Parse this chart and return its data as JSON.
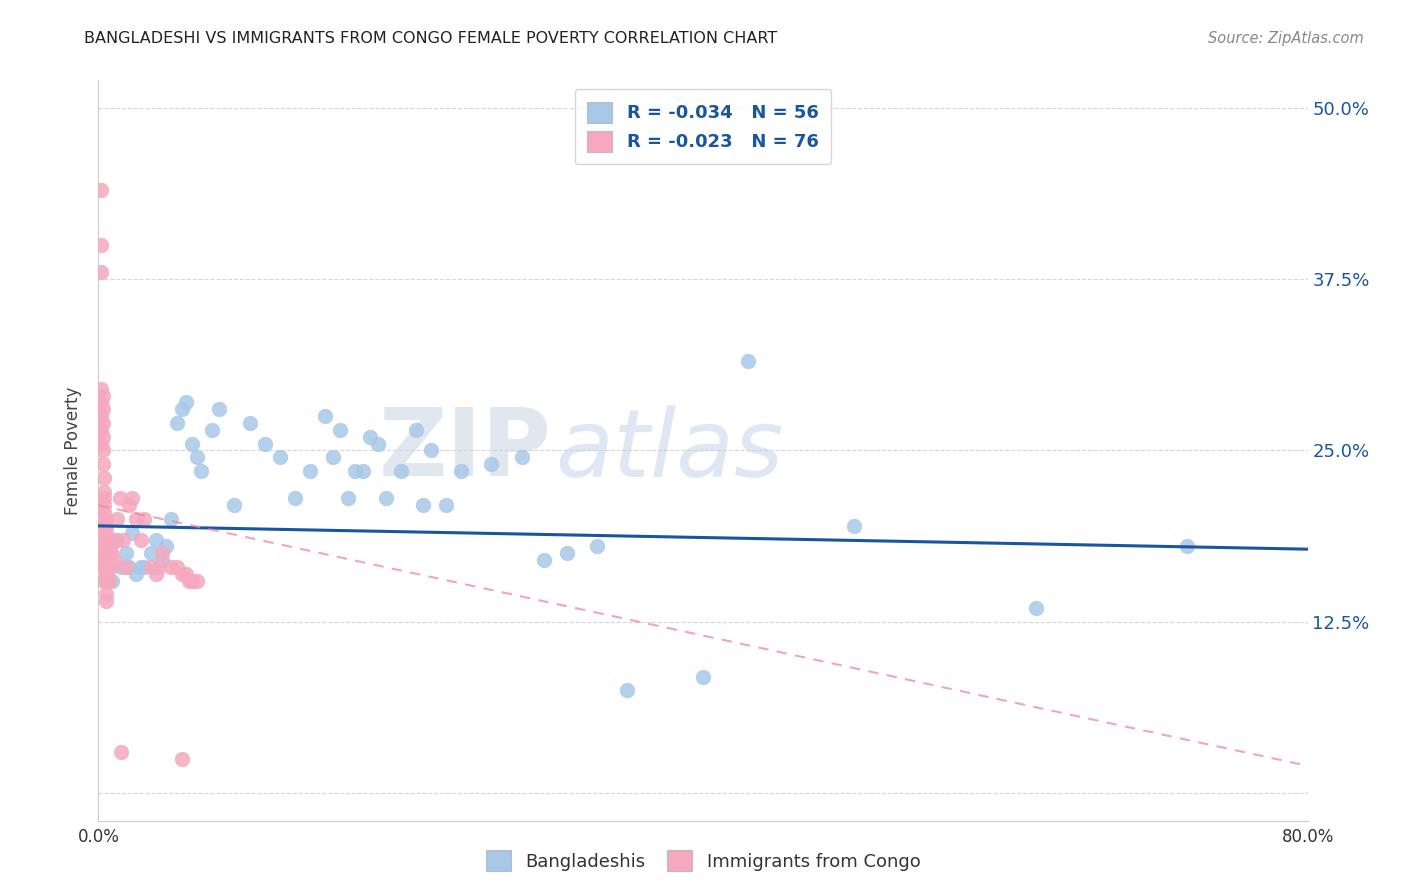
{
  "title": "BANGLADESHI VS IMMIGRANTS FROM CONGO FEMALE POVERTY CORRELATION CHART",
  "source": "Source: ZipAtlas.com",
  "ylabel": "Female Poverty",
  "blue_R": -0.034,
  "blue_N": 56,
  "pink_R": -0.023,
  "pink_N": 76,
  "blue_color": "#a8c8e8",
  "blue_line_color": "#1a56a0",
  "pink_color": "#f5a8be",
  "pink_line_color": "#e888a8",
  "legend_label_blue": "Bangladeshis",
  "legend_label_pink": "Immigrants from Congo",
  "xlim": [
    0.0,
    0.8
  ],
  "ylim": [
    -0.02,
    0.52
  ],
  "ytick_vals": [
    0.0,
    0.125,
    0.25,
    0.375,
    0.5
  ],
  "ytick_labels_right": [
    "",
    "12.5%",
    "25.0%",
    "37.5%",
    "50.0%"
  ],
  "blue_x": [
    0.005,
    0.007,
    0.009,
    0.012,
    0.015,
    0.018,
    0.02,
    0.022,
    0.025,
    0.028,
    0.03,
    0.035,
    0.038,
    0.042,
    0.045,
    0.048,
    0.052,
    0.055,
    0.058,
    0.062,
    0.065,
    0.068,
    0.075,
    0.08,
    0.09,
    0.1,
    0.11,
    0.12,
    0.13,
    0.14,
    0.15,
    0.155,
    0.16,
    0.165,
    0.17,
    0.175,
    0.18,
    0.185,
    0.19,
    0.2,
    0.21,
    0.215,
    0.22,
    0.23,
    0.24,
    0.26,
    0.28,
    0.295,
    0.31,
    0.33,
    0.35,
    0.4,
    0.43,
    0.5,
    0.62,
    0.72
  ],
  "blue_y": [
    0.175,
    0.18,
    0.155,
    0.185,
    0.165,
    0.175,
    0.165,
    0.19,
    0.16,
    0.165,
    0.165,
    0.175,
    0.185,
    0.17,
    0.18,
    0.2,
    0.27,
    0.28,
    0.285,
    0.255,
    0.245,
    0.235,
    0.265,
    0.28,
    0.21,
    0.27,
    0.255,
    0.245,
    0.215,
    0.235,
    0.275,
    0.245,
    0.265,
    0.215,
    0.235,
    0.235,
    0.26,
    0.255,
    0.215,
    0.235,
    0.265,
    0.21,
    0.25,
    0.21,
    0.235,
    0.24,
    0.245,
    0.17,
    0.175,
    0.18,
    0.075,
    0.085,
    0.315,
    0.195,
    0.135,
    0.18
  ],
  "pink_x": [
    0.002,
    0.002,
    0.002,
    0.002,
    0.002,
    0.002,
    0.002,
    0.002,
    0.002,
    0.002,
    0.003,
    0.003,
    0.003,
    0.003,
    0.003,
    0.003,
    0.003,
    0.003,
    0.003,
    0.003,
    0.004,
    0.004,
    0.004,
    0.004,
    0.004,
    0.004,
    0.004,
    0.004,
    0.005,
    0.005,
    0.005,
    0.005,
    0.005,
    0.005,
    0.005,
    0.005,
    0.005,
    0.005,
    0.005,
    0.005,
    0.006,
    0.006,
    0.006,
    0.006,
    0.006,
    0.007,
    0.007,
    0.007,
    0.007,
    0.008,
    0.008,
    0.008,
    0.01,
    0.01,
    0.012,
    0.014,
    0.016,
    0.018,
    0.02,
    0.022,
    0.025,
    0.028,
    0.03,
    0.035,
    0.038,
    0.04,
    0.042,
    0.048,
    0.052,
    0.055,
    0.058,
    0.06,
    0.062,
    0.065,
    0.055,
    0.015
  ],
  "pink_y": [
    0.44,
    0.4,
    0.38,
    0.295,
    0.285,
    0.275,
    0.265,
    0.255,
    0.2,
    0.17,
    0.29,
    0.28,
    0.27,
    0.26,
    0.25,
    0.24,
    0.195,
    0.185,
    0.175,
    0.165,
    0.23,
    0.22,
    0.215,
    0.21,
    0.205,
    0.175,
    0.17,
    0.155,
    0.2,
    0.195,
    0.19,
    0.185,
    0.18,
    0.175,
    0.17,
    0.165,
    0.16,
    0.155,
    0.145,
    0.14,
    0.185,
    0.18,
    0.175,
    0.165,
    0.155,
    0.175,
    0.17,
    0.165,
    0.155,
    0.18,
    0.175,
    0.165,
    0.185,
    0.17,
    0.2,
    0.215,
    0.185,
    0.165,
    0.21,
    0.215,
    0.2,
    0.185,
    0.2,
    0.165,
    0.16,
    0.165,
    0.175,
    0.165,
    0.165,
    0.16,
    0.16,
    0.155,
    0.155,
    0.155,
    0.025,
    0.03
  ],
  "blue_trend_x": [
    0.0,
    0.8
  ],
  "blue_trend_y": [
    0.195,
    0.178
  ],
  "pink_trend_x": [
    0.0,
    0.8
  ],
  "pink_trend_y": [
    0.21,
    0.02
  ]
}
